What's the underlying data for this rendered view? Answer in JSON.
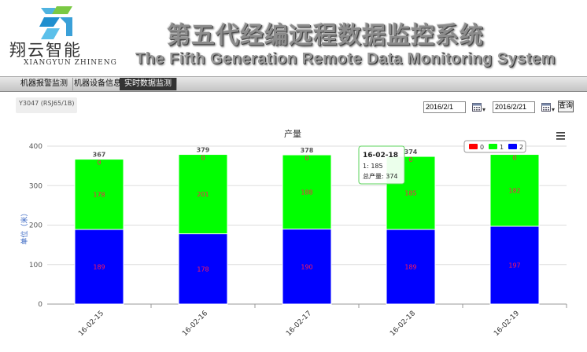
{
  "header": {
    "company_cn": "翔云智能",
    "company_en": "XIANGYUN ZHINENG",
    "title_cn": "第五代经编远程数据监控系统",
    "title_en": "The Fifth Generation Remote Data Monitoring System"
  },
  "tabs": [
    {
      "label": "机器报警监测",
      "active": false
    },
    {
      "label": "机器设备信息",
      "active": false
    },
    {
      "label": "实时数据监测",
      "active": true
    }
  ],
  "machine_label": "Y3047 (RSJ65/1B)",
  "date_range": {
    "start": "2016/2/1",
    "end": "2016/2/21",
    "query_label": "查询"
  },
  "menu_icon": "hamburger-menu-icon",
  "colors": {
    "series0": "#ff0000",
    "series1": "#00ff00",
    "series2": "#0000ff"
  },
  "tooltip": {
    "date": "16-02-18",
    "line1": "1: 185",
    "line2": "总产量: 374"
  },
  "chart_data": {
    "type": "bar",
    "stacked": true,
    "title": "产量",
    "ylabel": "单位（米）",
    "ylim": [
      0,
      400
    ],
    "yticks": [
      "0",
      "100",
      "200",
      "300",
      "400"
    ],
    "categories": [
      "16-02-15",
      "16-02-16",
      "16-02-17",
      "16-02-18",
      "16-02-19"
    ],
    "series": [
      {
        "name": "2",
        "color": "#0000ff",
        "values": [
          189,
          178,
          190,
          189,
          197
        ]
      },
      {
        "name": "1",
        "color": "#00ff00",
        "values": [
          178,
          201,
          188,
          185,
          182
        ]
      },
      {
        "name": "0",
        "color": "#ff0000",
        "values": [
          0,
          0,
          0,
          0,
          0
        ]
      }
    ],
    "totals": [
      367,
      379,
      378,
      374,
      379
    ],
    "legend": "top-right"
  }
}
